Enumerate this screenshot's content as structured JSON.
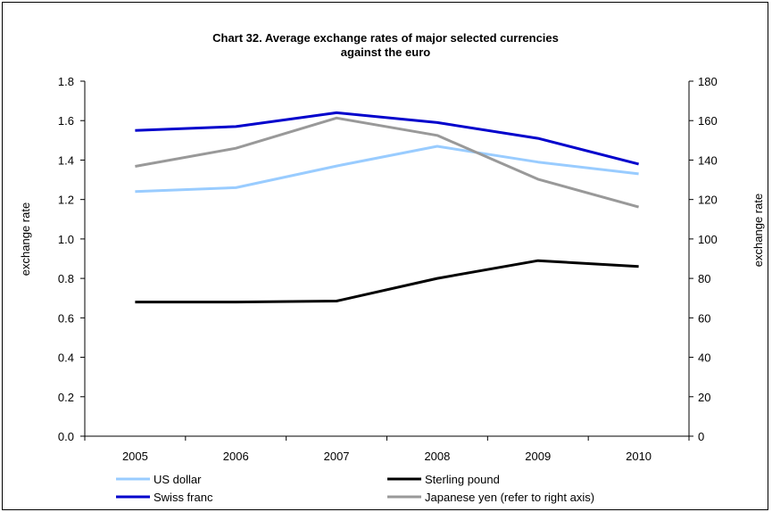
{
  "chart_data": {
    "type": "line",
    "title_line1": "Chart 32.  Average exchange rates of major selected currencies",
    "title_line2": "against the euro",
    "x": [
      "2005",
      "2006",
      "2007",
      "2008",
      "2009",
      "2010"
    ],
    "ylabel_left": "exchange rate",
    "ylabel_right": "exchange rate",
    "ylim_left": [
      0,
      1.8
    ],
    "ylim_right": [
      0,
      180
    ],
    "yticks_left": [
      "0.0",
      "0.2",
      "0.4",
      "0.6",
      "0.8",
      "1.0",
      "1.2",
      "1.4",
      "1.6",
      "1.8"
    ],
    "yticks_right": [
      "0",
      "20",
      "40",
      "60",
      "80",
      "100",
      "120",
      "140",
      "160",
      "180"
    ],
    "grid": false,
    "legend_position": "bottom",
    "series": [
      {
        "name": "US dollar",
        "axis": "left",
        "color": "#99ccff",
        "values": [
          1.24,
          1.26,
          1.37,
          1.47,
          1.39,
          1.33
        ]
      },
      {
        "name": "Sterling pound",
        "axis": "left",
        "color": "#000000",
        "values": [
          0.68,
          0.68,
          0.685,
          0.8,
          0.89,
          0.86
        ]
      },
      {
        "name": "Swiss franc",
        "axis": "left",
        "color": "#0000cc",
        "values": [
          1.55,
          1.57,
          1.64,
          1.59,
          1.51,
          1.38
        ]
      },
      {
        "name": "Japanese yen (refer to right axis)",
        "axis": "right",
        "color": "#999999",
        "values": [
          136.8,
          146.0,
          161.3,
          152.5,
          130.3,
          116.2
        ]
      }
    ]
  }
}
